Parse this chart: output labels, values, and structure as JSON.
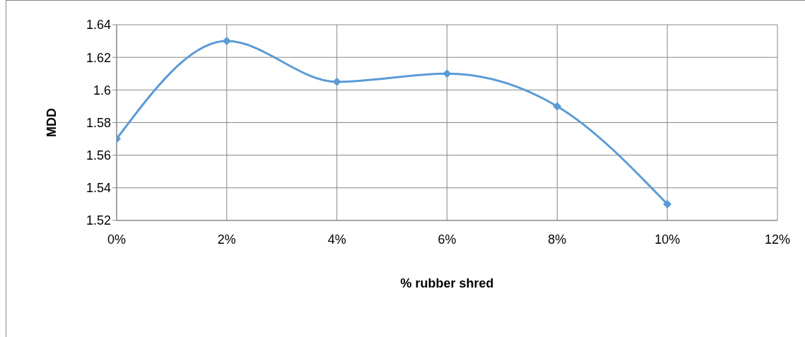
{
  "chart_data": {
    "type": "line",
    "xlabel": "% rubber shred",
    "ylabel": "MDD",
    "x": [
      0,
      2,
      4,
      6,
      8,
      10
    ],
    "series": [
      {
        "color": "#5b9bd5",
        "values": [
          1.57,
          1.63,
          1.605,
          1.61,
          1.59,
          1.53
        ]
      }
    ],
    "xlim": [
      0,
      12
    ],
    "xticks": [
      {
        "value": 0,
        "label": "0%"
      },
      {
        "value": 2,
        "label": "2%"
      },
      {
        "value": 4,
        "label": "4%"
      },
      {
        "value": 6,
        "label": "6%"
      },
      {
        "value": 8,
        "label": "8%"
      },
      {
        "value": 10,
        "label": "10%"
      },
      {
        "value": 12,
        "label": "12%"
      }
    ],
    "ylim": [
      1.52,
      1.64
    ],
    "yticks": [
      1.52,
      1.54,
      1.56,
      1.58,
      1.6,
      1.62,
      1.64
    ],
    "grid": true,
    "marker": "diamond",
    "legend": false
  }
}
